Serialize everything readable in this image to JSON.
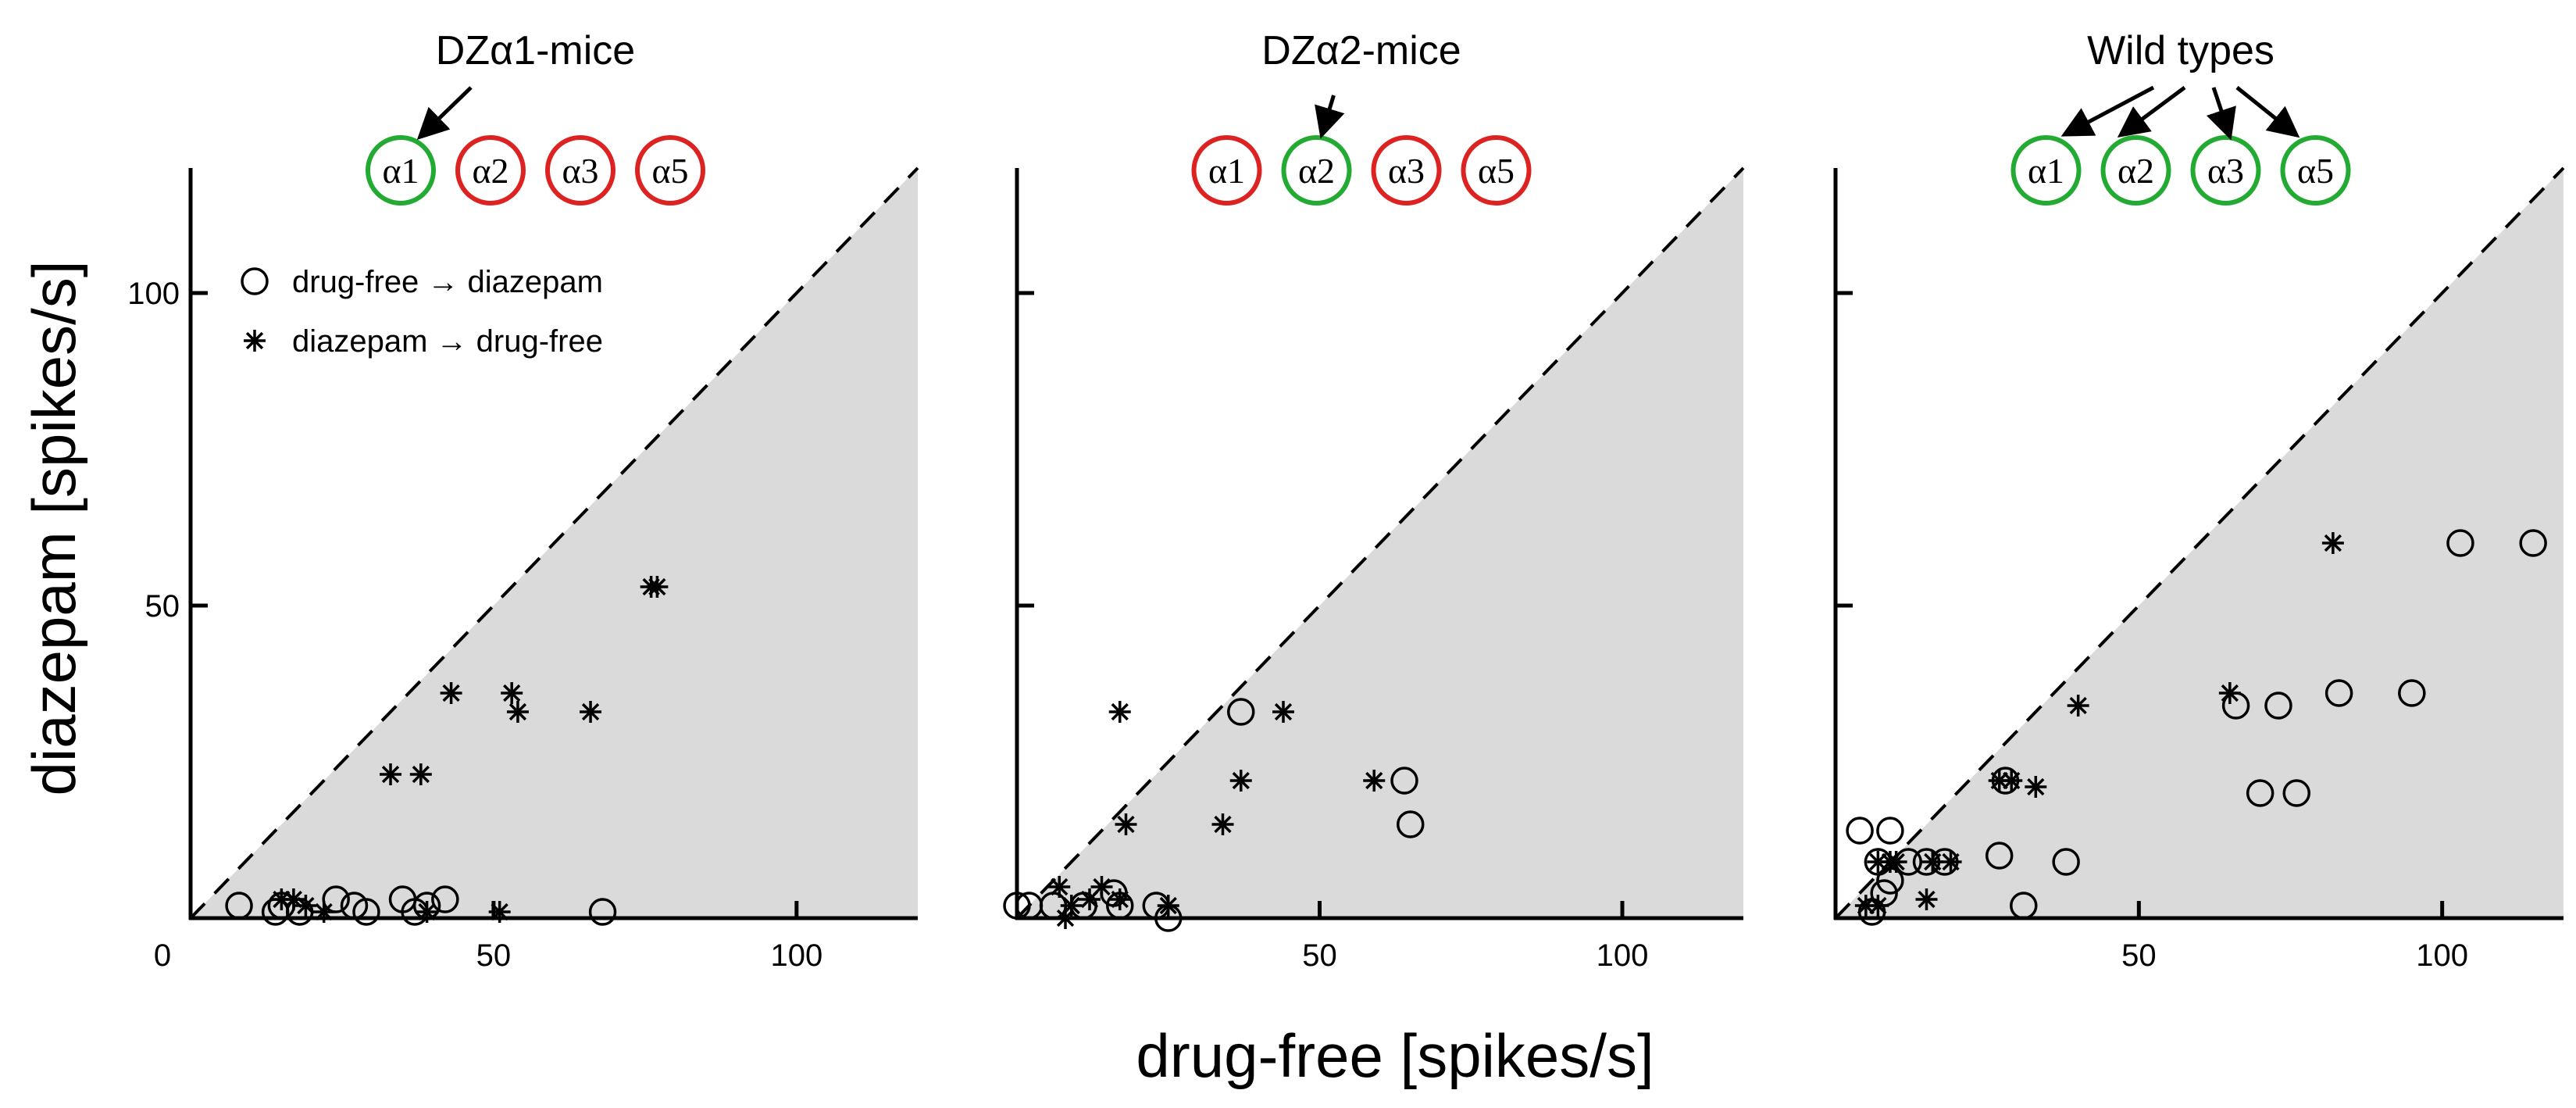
{
  "figure": {
    "ylabel": "diazepam [spikes/s]",
    "xlabel": "drug-free [spikes/s]",
    "colors": {
      "active": "#22aa33",
      "inactive": "#dd2222",
      "shade": "#dadada"
    },
    "legend": {
      "circle_label": "drug-free → diazepam",
      "star_label": "diazepam → drug-free"
    }
  },
  "chart_data": [
    {
      "type": "scatter",
      "title": "DZα1-mice",
      "subunits": [
        {
          "label": "α1",
          "state": "active"
        },
        {
          "label": "α2",
          "state": "inactive"
        },
        {
          "label": "α3",
          "state": "inactive"
        },
        {
          "label": "α5",
          "state": "inactive"
        }
      ],
      "arrow_targets": [
        "α1"
      ],
      "xlim": [
        0,
        120
      ],
      "ylim": [
        0,
        120
      ],
      "xticks": [
        "0",
        "50",
        "100"
      ],
      "yticks": [
        "100",
        "50"
      ],
      "series": [
        {
          "name": "drug-free → diazepam",
          "marker": "circle",
          "points": [
            [
              8,
              2
            ],
            [
              14,
              1
            ],
            [
              15,
              2
            ],
            [
              18,
              1
            ],
            [
              24,
              3
            ],
            [
              27,
              2
            ],
            [
              29,
              1
            ],
            [
              35,
              3
            ],
            [
              37,
              1
            ],
            [
              39,
              2
            ],
            [
              42,
              3
            ],
            [
              68,
              1
            ]
          ]
        },
        {
          "name": "diazepam → drug-free",
          "marker": "star",
          "points": [
            [
              15,
              3
            ],
            [
              17,
              3
            ],
            [
              19,
              2
            ],
            [
              22,
              1
            ],
            [
              33,
              23
            ],
            [
              38,
              23
            ],
            [
              43,
              36
            ],
            [
              53,
              36
            ],
            [
              54,
              33
            ],
            [
              51,
              1
            ],
            [
              66,
              33
            ],
            [
              76,
              53
            ],
            [
              77,
              53
            ],
            [
              39,
              1
            ]
          ]
        }
      ]
    },
    {
      "type": "scatter",
      "title": "DZα2-mice",
      "subunits": [
        {
          "label": "α1",
          "state": "inactive"
        },
        {
          "label": "α2",
          "state": "active"
        },
        {
          "label": "α3",
          "state": "inactive"
        },
        {
          "label": "α5",
          "state": "inactive"
        }
      ],
      "arrow_targets": [
        "α2"
      ],
      "xlim": [
        0,
        120
      ],
      "ylim": [
        0,
        120
      ],
      "xticks": [
        "50",
        "100"
      ],
      "yticks": [],
      "series": [
        {
          "name": "drug-free → diazepam",
          "marker": "circle",
          "points": [
            [
              0,
              2
            ],
            [
              2,
              2
            ],
            [
              6,
              2
            ],
            [
              11,
              2
            ],
            [
              16,
              4
            ],
            [
              17,
              2
            ],
            [
              23,
              2
            ],
            [
              25,
              0
            ],
            [
              37,
              33
            ],
            [
              64,
              22
            ],
            [
              65,
              15
            ]
          ]
        },
        {
          "name": "diazepam → drug-free",
          "marker": "star",
          "points": [
            [
              7,
              5
            ],
            [
              9,
              2
            ],
            [
              12,
              3
            ],
            [
              14,
              5
            ],
            [
              17,
              33
            ],
            [
              18,
              15
            ],
            [
              17,
              3
            ],
            [
              25,
              2
            ],
            [
              34,
              15
            ],
            [
              37,
              22
            ],
            [
              44,
              33
            ],
            [
              59,
              22
            ],
            [
              8,
              0
            ]
          ]
        }
      ]
    },
    {
      "type": "scatter",
      "title": "Wild types",
      "subunits": [
        {
          "label": "α1",
          "state": "active"
        },
        {
          "label": "α2",
          "state": "active"
        },
        {
          "label": "α3",
          "state": "active"
        },
        {
          "label": "α5",
          "state": "active"
        }
      ],
      "arrow_targets": [
        "α1",
        "α2",
        "α3",
        "α5"
      ],
      "xlim": [
        0,
        120
      ],
      "ylim": [
        0,
        120
      ],
      "xticks": [
        "50",
        "100"
      ],
      "yticks": [],
      "series": [
        {
          "name": "drug-free → diazepam",
          "marker": "circle",
          "points": [
            [
              4,
              14
            ],
            [
              9,
              14
            ],
            [
              7,
              9
            ],
            [
              8,
              4
            ],
            [
              9,
              6
            ],
            [
              6,
              1
            ],
            [
              12,
              9
            ],
            [
              15,
              9
            ],
            [
              18,
              9
            ],
            [
              27,
              10
            ],
            [
              28,
              22
            ],
            [
              31,
              2
            ],
            [
              38,
              9
            ],
            [
              66,
              34
            ],
            [
              70,
              20
            ],
            [
              73,
              34
            ],
            [
              76,
              20
            ],
            [
              83,
              36
            ],
            [
              95,
              36
            ],
            [
              103,
              60
            ],
            [
              115,
              60
            ]
          ]
        },
        {
          "name": "diazepam → drug-free",
          "marker": "star",
          "points": [
            [
              5,
              2
            ],
            [
              7,
              2
            ],
            [
              7,
              9
            ],
            [
              9,
              9
            ],
            [
              10,
              9
            ],
            [
              16,
              9
            ],
            [
              19,
              9
            ],
            [
              15,
              3
            ],
            [
              27,
              22
            ],
            [
              29,
              22
            ],
            [
              33,
              21
            ],
            [
              40,
              34
            ],
            [
              65,
              36
            ],
            [
              82,
              60
            ]
          ]
        }
      ]
    }
  ]
}
